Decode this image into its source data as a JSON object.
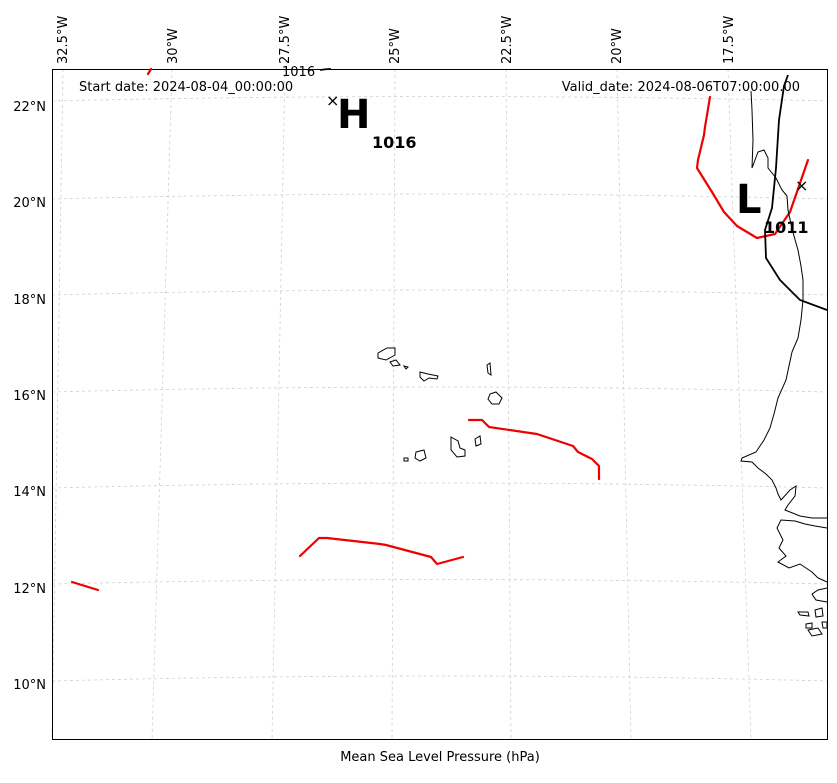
{
  "map": {
    "start_date": "Start date: 2024-08-04_00:00:00",
    "valid_date": "Valid_date: 2024-08-06T07:00:00.00",
    "caption": "Mean Sea Level Pressure (hPa)",
    "lon_labels": [
      "32.5°W",
      "30°W",
      "27.5°W",
      "25°W",
      "22.5°W",
      "20°W",
      "17.5°W"
    ],
    "lat_labels": [
      "22°N",
      "20°N",
      "18°N",
      "16°N",
      "14°N",
      "12°N",
      "10°N"
    ],
    "high_center": {
      "letter": "H",
      "pressure": "1016",
      "marker": "×"
    },
    "low_center": {
      "letter": "L",
      "pressure": "1011",
      "marker": "×"
    },
    "contour_label_top": "1016",
    "colors": {
      "isobar": "#ee0000",
      "coast": "#000000",
      "grid": "#cccccc"
    }
  }
}
